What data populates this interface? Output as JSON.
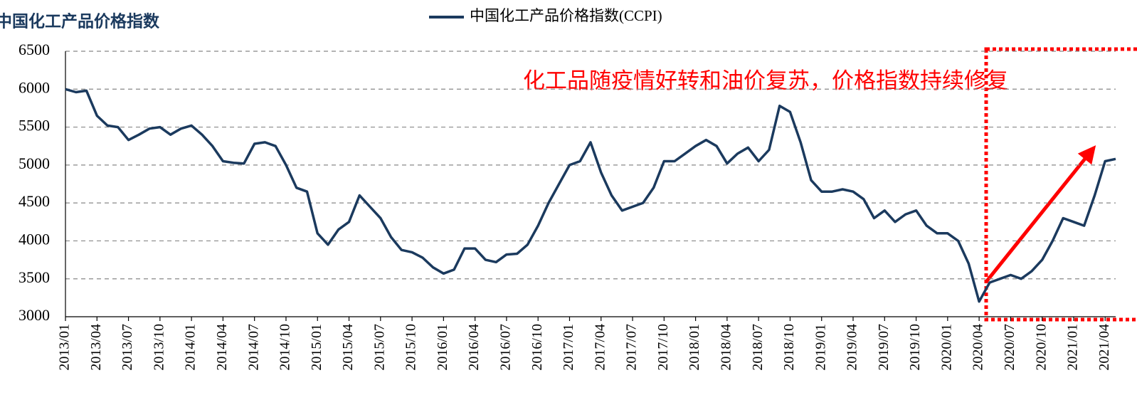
{
  "chart_data": {
    "type": "line",
    "title": "中国化工产品价格指数",
    "annotation": "化工品随疫情好转和油价复苏，价格指数持续修复",
    "x": [
      "2013/01",
      "2013/02",
      "2013/03",
      "2013/04",
      "2013/05",
      "2013/06",
      "2013/07",
      "2013/08",
      "2013/09",
      "2013/10",
      "2013/11",
      "2013/12",
      "2014/01",
      "2014/02",
      "2014/03",
      "2014/04",
      "2014/05",
      "2014/06",
      "2014/07",
      "2014/08",
      "2014/09",
      "2014/10",
      "2014/11",
      "2014/12",
      "2015/01",
      "2015/02",
      "2015/03",
      "2015/04",
      "2015/05",
      "2015/06",
      "2015/07",
      "2015/08",
      "2015/09",
      "2015/10",
      "2015/11",
      "2015/12",
      "2016/01",
      "2016/02",
      "2016/03",
      "2016/04",
      "2016/05",
      "2016/06",
      "2016/07",
      "2016/08",
      "2016/09",
      "2016/10",
      "2016/11",
      "2016/12",
      "2017/01",
      "2017/02",
      "2017/03",
      "2017/04",
      "2017/05",
      "2017/06",
      "2017/07",
      "2017/08",
      "2017/09",
      "2017/10",
      "2017/11",
      "2017/12",
      "2018/01",
      "2018/02",
      "2018/03",
      "2018/04",
      "2018/05",
      "2018/06",
      "2018/07",
      "2018/08",
      "2018/09",
      "2018/10",
      "2018/11",
      "2018/12",
      "2019/01",
      "2019/02",
      "2019/03",
      "2019/04",
      "2019/05",
      "2019/06",
      "2019/07",
      "2019/08",
      "2019/09",
      "2019/10",
      "2019/11",
      "2019/12",
      "2020/01",
      "2020/02",
      "2020/03",
      "2020/04",
      "2020/05",
      "2020/06",
      "2020/07",
      "2020/08",
      "2020/09",
      "2020/10",
      "2020/11",
      "2020/12",
      "2021/01",
      "2021/02",
      "2021/03",
      "2021/04",
      "2021/05"
    ],
    "series": [
      {
        "name": "中国化工产品价格指数(CCPI)",
        "color": "#1b3a5e",
        "values": [
          6000,
          5960,
          5980,
          5650,
          5520,
          5500,
          5330,
          5400,
          5480,
          5500,
          5400,
          5480,
          5520,
          5400,
          5250,
          5050,
          5030,
          5020,
          5280,
          5300,
          5250,
          5000,
          4700,
          4650,
          4100,
          3950,
          4150,
          4250,
          4600,
          4450,
          4300,
          4050,
          3880,
          3850,
          3780,
          3650,
          3570,
          3620,
          3900,
          3900,
          3750,
          3720,
          3820,
          3830,
          3950,
          4200,
          4500,
          4750,
          5000,
          5050,
          5300,
          4900,
          4600,
          4400,
          4450,
          4500,
          4700,
          5050,
          5050,
          5150,
          5250,
          5330,
          5250,
          5020,
          5150,
          5230,
          5050,
          5200,
          5780,
          5700,
          5300,
          4800,
          4650,
          4650,
          4680,
          4650,
          4550,
          4300,
          4400,
          4250,
          4350,
          4400,
          4200,
          4100,
          4100,
          4000,
          3700,
          3200,
          3450,
          3500,
          3550,
          3500,
          3600,
          3750,
          4000,
          4300,
          4250,
          4200,
          4600,
          5050,
          5080
        ]
      }
    ],
    "xlim": [
      "2013/01",
      "2021/05"
    ],
    "xticks": [
      "2013/01",
      "2013/04",
      "2013/07",
      "2013/10",
      "2014/01",
      "2014/04",
      "2014/07",
      "2014/10",
      "2015/01",
      "2015/04",
      "2015/07",
      "2015/10",
      "2016/01",
      "2016/04",
      "2016/07",
      "2016/10",
      "2017/01",
      "2017/04",
      "2017/07",
      "2017/10",
      "2018/01",
      "2018/04",
      "2018/07",
      "2018/10",
      "2019/01",
      "2019/04",
      "2019/07",
      "2019/10",
      "2020/01",
      "2020/04",
      "2020/07",
      "2020/10",
      "2021/01",
      "2021/04"
    ],
    "ylim": [
      3000,
      6500
    ],
    "yticks": [
      3000,
      3500,
      4000,
      4500,
      5000,
      5500,
      6000,
      6500
    ],
    "grid": true
  }
}
